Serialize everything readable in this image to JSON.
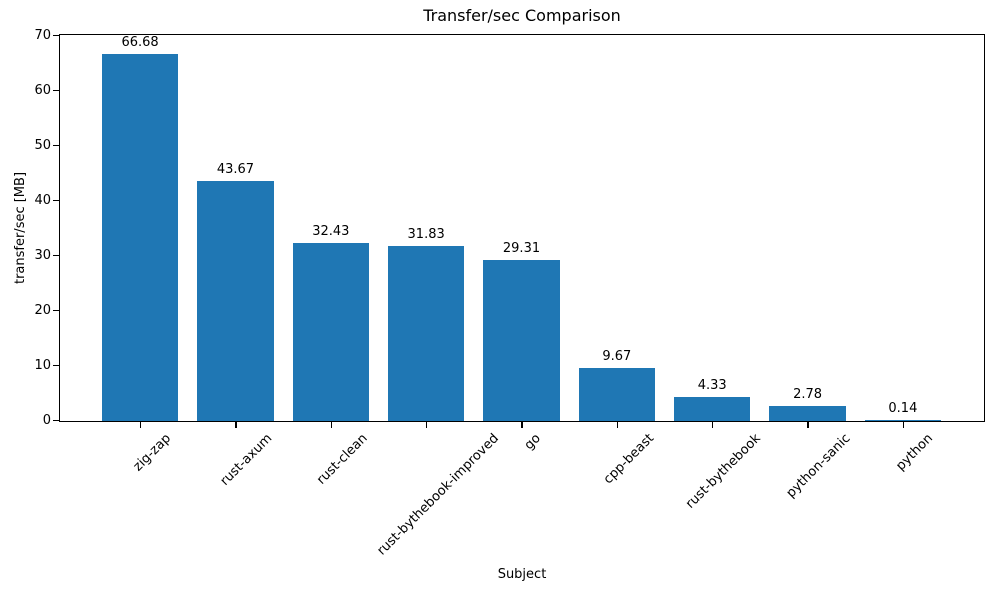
{
  "chart_data": {
    "type": "bar",
    "title": "Transfer/sec Comparison",
    "xlabel": "Subject",
    "ylabel": "transfer/sec [MB]",
    "categories": [
      "zig-zap",
      "rust-axum",
      "rust-clean",
      "rust-bythebook-improved",
      "go",
      "cpp-beast",
      "rust-bythebook",
      "python-sanic",
      "python"
    ],
    "values": [
      66.68,
      43.67,
      32.43,
      31.83,
      29.31,
      9.67,
      4.33,
      2.78,
      0.14
    ],
    "value_labels": [
      "66.68",
      "43.67",
      "32.43",
      "31.83",
      "29.31",
      "9.67",
      "4.33",
      "2.78",
      "0.14"
    ],
    "yticks": [
      "0",
      "10",
      "20",
      "30",
      "40",
      "50",
      "60",
      "70"
    ],
    "ytick_values": [
      0,
      10,
      20,
      30,
      40,
      50,
      60,
      70
    ],
    "ylim": [
      0,
      70
    ],
    "x_tick_rotation_deg": 45,
    "grid": false,
    "legend": null,
    "colors": {
      "bar": "#1f77b4",
      "text": "#000000",
      "spine": "#000000",
      "background": "#ffffff"
    }
  }
}
